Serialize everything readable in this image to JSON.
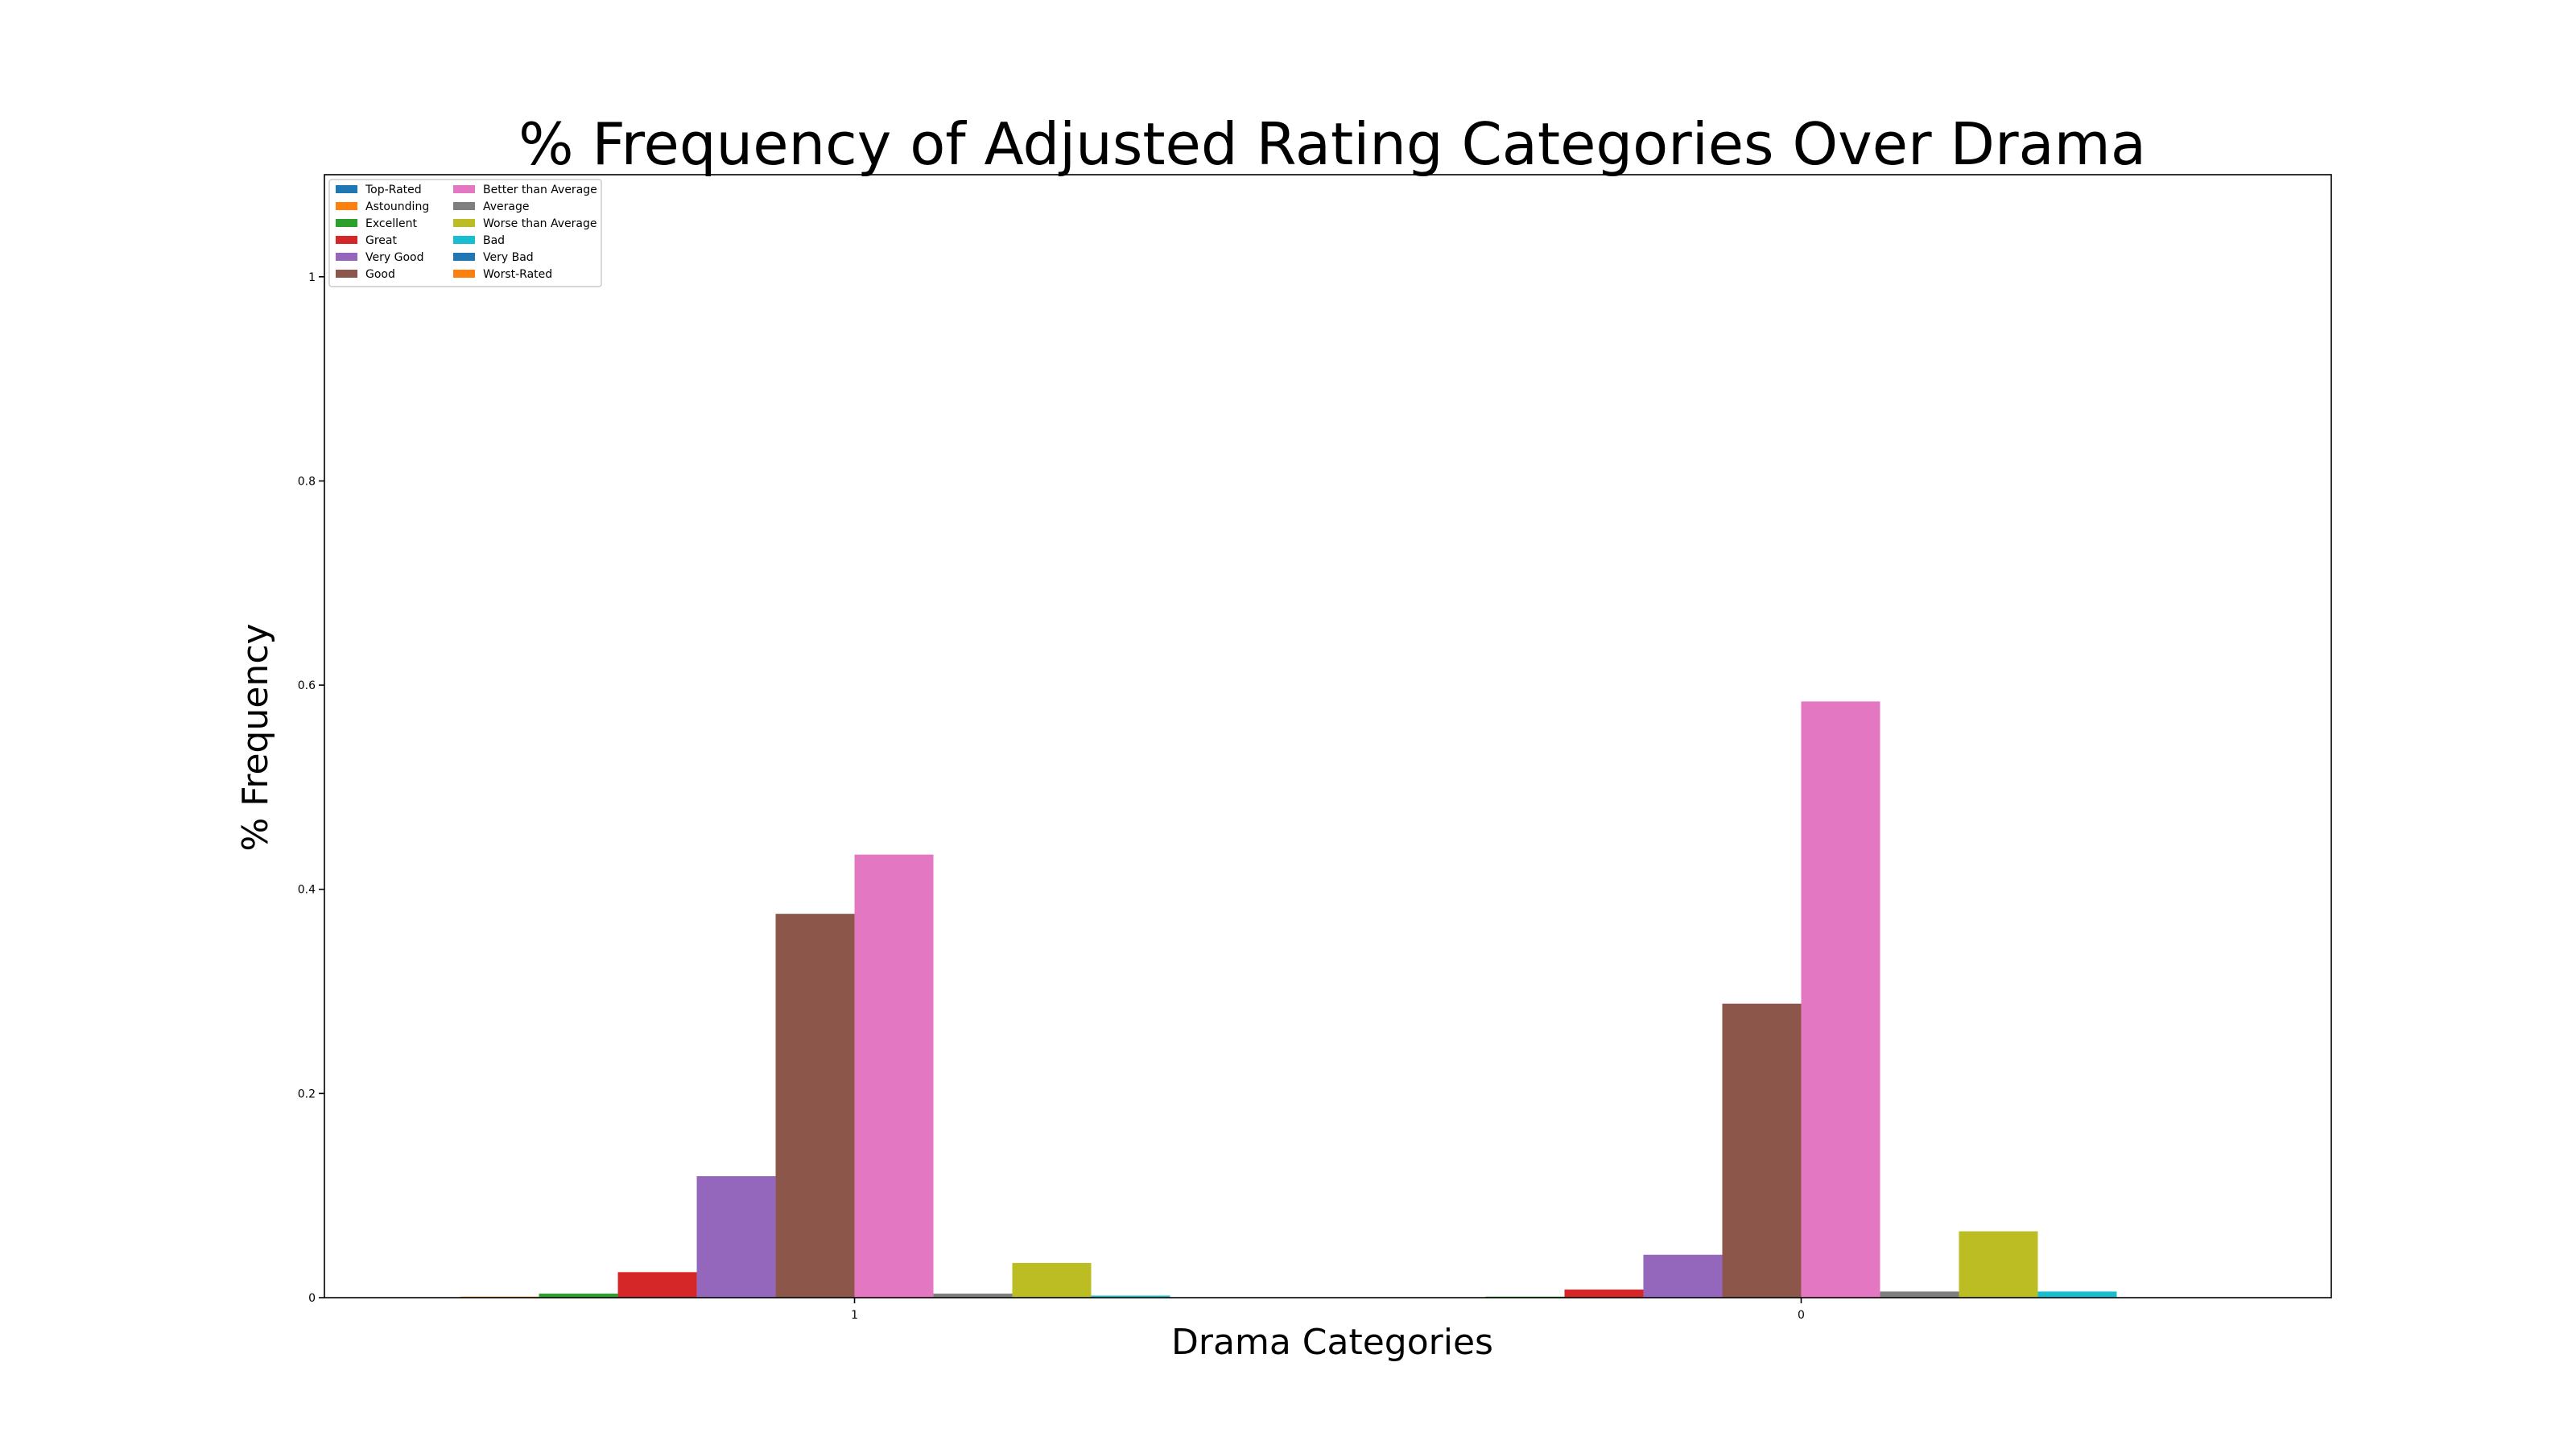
{
  "chart_data": {
    "type": "bar",
    "title": "% Frequency of Adjusted Rating Categories Over Drama",
    "xlabel": "Drama Categories",
    "ylabel": "% Frequency",
    "categories": [
      "1",
      "0"
    ],
    "ylim": [
      0,
      1.1
    ],
    "yticks": [
      0,
      0.2,
      0.4,
      0.6,
      0.8,
      1
    ],
    "ytick_labels": [
      "0",
      "0.2",
      "0.4",
      "0.6",
      "0.8",
      "1"
    ],
    "grid": false,
    "legend_position": "top-left",
    "legend_columns": 2,
    "series": [
      {
        "name": "Top-Rated",
        "color": "#1f77b4",
        "values": [
          0.0,
          0.0
        ]
      },
      {
        "name": "Astounding",
        "color": "#ff7f0e",
        "values": [
          0.001,
          0.0
        ]
      },
      {
        "name": "Excellent",
        "color": "#2ca02c",
        "values": [
          0.004,
          0.001
        ]
      },
      {
        "name": "Great",
        "color": "#d62728",
        "values": [
          0.025,
          0.008
        ]
      },
      {
        "name": "Very Good",
        "color": "#9467bd",
        "values": [
          0.119,
          0.042
        ]
      },
      {
        "name": "Good",
        "color": "#8c564b",
        "values": [
          0.376,
          0.288
        ]
      },
      {
        "name": "Better than Average",
        "color": "#e377c2",
        "values": [
          0.434,
          0.584
        ]
      },
      {
        "name": "Average",
        "color": "#7f7f7f",
        "values": [
          0.004,
          0.006
        ]
      },
      {
        "name": "Worse than Average",
        "color": "#bcbd22",
        "values": [
          0.034,
          0.065
        ]
      },
      {
        "name": "Bad",
        "color": "#17becf",
        "values": [
          0.002,
          0.006
        ]
      },
      {
        "name": "Very Bad",
        "color": "#1f77b4",
        "values": [
          0.0,
          0.0
        ]
      },
      {
        "name": "Worst-Rated",
        "color": "#ff7f0e",
        "values": [
          0.0,
          0.0
        ]
      }
    ]
  }
}
